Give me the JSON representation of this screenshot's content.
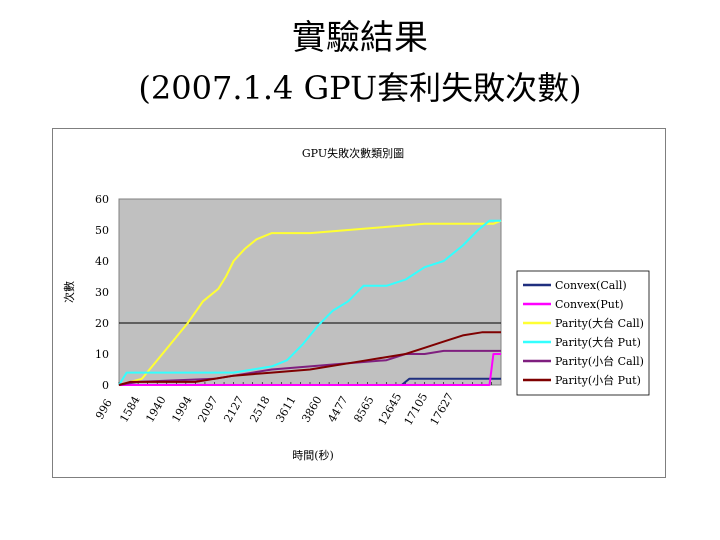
{
  "slide": {
    "title_line1": "實驗結果",
    "title_line2": "(2007.1.4 GPU套利失敗次數)"
  },
  "chart_data": {
    "type": "line",
    "title": "GPU失敗次數類別圖",
    "xlabel": "時間(秒)",
    "ylabel": "次數",
    "ylim": [
      0,
      60
    ],
    "yticks": [
      0,
      10,
      20,
      30,
      40,
      50,
      60
    ],
    "reference_line": 20,
    "grid": false,
    "legend_position": "right",
    "categories": [
      "996",
      "1584",
      "1940",
      "1994",
      "2097",
      "2127",
      "2518",
      "3611",
      "3860",
      "4477",
      "8565",
      "12645",
      "17105",
      "17627"
    ],
    "x_max": 100,
    "series": [
      {
        "name": "Convex(Call)",
        "color": "#1f2f7f",
        "x": [
          0,
          74,
          76,
          100
        ],
        "y": [
          0,
          0,
          2,
          2
        ]
      },
      {
        "name": "Convex(Put)",
        "color": "#ff00ff",
        "x": [
          0,
          97,
          98,
          100
        ],
        "y": [
          0,
          0,
          10,
          10
        ]
      },
      {
        "name": "Parity(大台 Call)",
        "color": "#ffff33",
        "x": [
          0,
          6,
          10,
          14,
          18,
          22,
          26,
          28,
          30,
          33,
          36,
          40,
          50,
          60,
          70,
          80,
          90,
          95,
          98,
          100
        ],
        "y": [
          0,
          2,
          8,
          14,
          20,
          27,
          31,
          35,
          40,
          44,
          47,
          49,
          49,
          50,
          51,
          52,
          52,
          52,
          52,
          53
        ]
      },
      {
        "name": "Parity(大台 Put)",
        "color": "#33ffff",
        "x": [
          0,
          2,
          30,
          35,
          40,
          44,
          48,
          52,
          56,
          60,
          64,
          70,
          75,
          80,
          85,
          90,
          94,
          97,
          100
        ],
        "y": [
          0,
          4,
          4,
          5,
          6,
          8,
          13,
          19,
          24,
          27,
          32,
          32,
          34,
          38,
          40,
          45,
          50,
          53,
          53
        ]
      },
      {
        "name": "Parity(小台 Call)",
        "color": "#7f1f7f",
        "x": [
          0,
          5,
          25,
          30,
          40,
          50,
          60,
          70,
          75,
          80,
          85,
          90,
          95,
          100
        ],
        "y": [
          0,
          1,
          2,
          3,
          5,
          6,
          7,
          8,
          10,
          10,
          11,
          11,
          11,
          11
        ]
      },
      {
        "name": "Parity(小台 Put)",
        "color": "#7f0000",
        "x": [
          0,
          3,
          20,
          30,
          40,
          50,
          55,
          60,
          65,
          70,
          75,
          80,
          85,
          90,
          95,
          100
        ],
        "y": [
          0,
          1,
          1,
          3,
          4,
          5,
          6,
          7,
          8,
          9,
          10,
          12,
          14,
          16,
          17,
          17
        ]
      }
    ]
  }
}
